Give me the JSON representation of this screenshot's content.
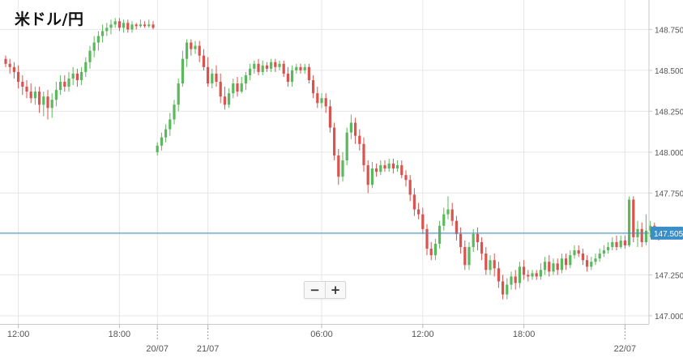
{
  "title": "米ドル/円",
  "zoom": {
    "out_label": "−",
    "in_label": "+"
  },
  "chart_data": {
    "type": "candlestick",
    "title": "米ドル/円",
    "ylim": [
      146.95,
      148.93
    ],
    "y_ticks": [
      "148.750",
      "148.500",
      "148.250",
      "148.000",
      "147.750",
      "147.500",
      "147.250",
      "147.000"
    ],
    "y_tick_values": [
      148.75,
      148.5,
      148.25,
      148.0,
      147.75,
      147.5,
      147.25,
      147.0
    ],
    "current_price": 147.505,
    "current_price_label": "147.505",
    "x_ticks": [
      {
        "label": "12:00",
        "index": 3
      },
      {
        "label": "18:00",
        "index": 27
      },
      {
        "label": "20/07",
        "index": 36,
        "separator": true
      },
      {
        "label": "21/07",
        "index": 48,
        "separator": true
      },
      {
        "label": "06:00",
        "index": 75
      },
      {
        "label": "12:00",
        "index": 99
      },
      {
        "label": "18:00",
        "index": 123
      },
      {
        "label": "22/07",
        "index": 147,
        "separator": true
      }
    ],
    "colors": {
      "up": "#5cb85c",
      "down": "#d9534f",
      "doji": "#222222",
      "price_line": "#3a8fc8",
      "grid": "#e6e6e6",
      "axis_text": "#555555"
    },
    "candles": [
      [
        148.57,
        148.54,
        148.59,
        148.52
      ],
      [
        148.54,
        148.52,
        148.57,
        148.48
      ],
      [
        148.52,
        148.49,
        148.55,
        148.45
      ],
      [
        148.49,
        148.43,
        148.53,
        148.39
      ],
      [
        148.43,
        148.4,
        148.47,
        148.35
      ],
      [
        148.4,
        148.37,
        148.44,
        148.33
      ],
      [
        148.37,
        148.33,
        148.42,
        148.3
      ],
      [
        148.33,
        148.37,
        148.4,
        148.29
      ],
      [
        148.37,
        148.29,
        148.4,
        148.24
      ],
      [
        148.29,
        148.34,
        148.37,
        148.22
      ],
      [
        148.34,
        148.27,
        148.38,
        148.2
      ],
      [
        148.27,
        148.32,
        148.36,
        148.21
      ],
      [
        148.32,
        148.38,
        148.43,
        148.28
      ],
      [
        148.38,
        148.43,
        148.47,
        148.35
      ],
      [
        148.43,
        148.4,
        148.47,
        148.37
      ],
      [
        148.4,
        148.45,
        148.49,
        148.37
      ],
      [
        148.45,
        148.48,
        148.52,
        148.41
      ],
      [
        148.48,
        148.44,
        148.51,
        148.4
      ],
      [
        148.44,
        148.49,
        148.52,
        148.41
      ],
      [
        148.49,
        148.55,
        148.58,
        148.46
      ],
      [
        148.55,
        148.62,
        148.65,
        148.51
      ],
      [
        148.62,
        148.67,
        148.71,
        148.58
      ],
      [
        148.67,
        148.71,
        148.74,
        148.62
      ],
      [
        148.71,
        148.74,
        148.78,
        148.67
      ],
      [
        148.74,
        148.76,
        148.79,
        148.71
      ],
      [
        148.76,
        148.78,
        148.81,
        148.72
      ],
      [
        148.78,
        148.8,
        148.82,
        148.76
      ],
      [
        148.8,
        148.76,
        148.82,
        148.74
      ],
      [
        148.76,
        148.79,
        148.81,
        148.73
      ],
      [
        148.79,
        148.75,
        148.81,
        148.73
      ],
      [
        148.75,
        148.78,
        148.8,
        148.73
      ],
      [
        148.78,
        148.77,
        148.79,
        148.75
      ],
      [
        148.77,
        148.78,
        148.81,
        148.76
      ],
      [
        148.78,
        148.77,
        148.8,
        148.76
      ],
      [
        148.77,
        148.78,
        148.81,
        148.76
      ],
      [
        148.78,
        148.76,
        148.8,
        148.75
      ],
      [
        148.0,
        148.04,
        148.06,
        147.98
      ],
      [
        148.04,
        148.09,
        148.12,
        148.01
      ],
      [
        148.09,
        148.14,
        148.17,
        148.06
      ],
      [
        148.14,
        148.2,
        148.24,
        148.1
      ],
      [
        148.2,
        148.29,
        148.32,
        148.17
      ],
      [
        148.29,
        148.42,
        148.45,
        148.25
      ],
      [
        148.42,
        148.57,
        148.62,
        148.4
      ],
      [
        148.57,
        148.67,
        148.69,
        148.52
      ],
      [
        148.67,
        148.63,
        148.69,
        148.59
      ],
      [
        148.63,
        148.65,
        148.68,
        148.6
      ],
      [
        148.65,
        148.59,
        148.68,
        148.55
      ],
      [
        148.59,
        148.52,
        148.63,
        148.5
      ],
      [
        148.52,
        148.42,
        148.58,
        148.4
      ],
      [
        148.42,
        148.48,
        148.51,
        148.39
      ],
      [
        148.48,
        148.43,
        148.53,
        148.4
      ],
      [
        148.43,
        148.34,
        148.48,
        148.3
      ],
      [
        148.34,
        148.29,
        148.4,
        148.26
      ],
      [
        148.29,
        148.36,
        148.39,
        148.27
      ],
      [
        148.36,
        148.42,
        148.45,
        148.33
      ],
      [
        148.42,
        148.37,
        148.46,
        148.34
      ],
      [
        148.37,
        148.42,
        148.46,
        148.36
      ],
      [
        148.42,
        148.47,
        148.49,
        148.38
      ],
      [
        148.47,
        148.51,
        148.54,
        148.44
      ],
      [
        148.51,
        148.54,
        148.56,
        148.48
      ],
      [
        148.54,
        148.49,
        148.57,
        148.47
      ],
      [
        148.49,
        148.53,
        148.56,
        148.47
      ],
      [
        148.53,
        148.51,
        148.55,
        148.49
      ],
      [
        148.51,
        148.55,
        148.57,
        148.49
      ],
      [
        148.55,
        148.52,
        148.57,
        148.49
      ],
      [
        148.52,
        148.54,
        148.56,
        148.5
      ],
      [
        148.54,
        148.48,
        148.56,
        148.46
      ],
      [
        148.48,
        148.43,
        148.52,
        148.4
      ],
      [
        148.43,
        148.5,
        148.53,
        148.4
      ],
      [
        148.5,
        148.52,
        148.54,
        148.48
      ],
      [
        148.52,
        148.5,
        148.54,
        148.48
      ],
      [
        148.5,
        148.52,
        148.54,
        148.48
      ],
      [
        148.52,
        148.44,
        148.54,
        148.42
      ],
      [
        148.44,
        148.36,
        148.47,
        148.33
      ],
      [
        148.36,
        148.3,
        148.4,
        148.27
      ],
      [
        148.3,
        148.33,
        148.36,
        148.27
      ],
      [
        148.33,
        148.28,
        148.36,
        148.24
      ],
      [
        148.28,
        148.15,
        148.32,
        148.12
      ],
      [
        148.15,
        147.98,
        148.18,
        147.95
      ],
      [
        147.98,
        147.85,
        148.02,
        147.8
      ],
      [
        147.85,
        147.95,
        148.0,
        147.82
      ],
      [
        147.95,
        148.12,
        148.15,
        147.92
      ],
      [
        148.12,
        148.18,
        148.23,
        148.08
      ],
      [
        148.18,
        148.1,
        148.21,
        148.05
      ],
      [
        148.1,
        148.05,
        148.14,
        148.01
      ],
      [
        148.05,
        147.92,
        148.09,
        147.88
      ],
      [
        147.92,
        147.8,
        147.95,
        147.75
      ],
      [
        147.8,
        147.9,
        147.94,
        147.78
      ],
      [
        147.9,
        147.88,
        147.93,
        147.85
      ],
      [
        147.88,
        147.92,
        147.95,
        147.86
      ],
      [
        147.92,
        147.9,
        147.95,
        147.88
      ],
      [
        147.9,
        147.93,
        147.96,
        147.88
      ],
      [
        147.93,
        147.9,
        147.96,
        147.87
      ],
      [
        147.9,
        147.92,
        147.95,
        147.88
      ],
      [
        147.92,
        147.86,
        147.95,
        147.84
      ],
      [
        147.86,
        147.83,
        147.89,
        147.79
      ],
      [
        147.83,
        147.74,
        147.86,
        147.7
      ],
      [
        147.74,
        147.65,
        147.78,
        147.61
      ],
      [
        147.65,
        147.62,
        147.69,
        147.59
      ],
      [
        147.62,
        147.53,
        147.66,
        147.5
      ],
      [
        147.53,
        147.41,
        147.56,
        147.37
      ],
      [
        147.41,
        147.37,
        147.45,
        147.34
      ],
      [
        147.37,
        147.44,
        147.47,
        147.34
      ],
      [
        147.44,
        147.55,
        147.58,
        147.41
      ],
      [
        147.55,
        147.62,
        147.66,
        147.52
      ],
      [
        147.62,
        147.65,
        147.73,
        147.59
      ],
      [
        147.65,
        147.58,
        147.69,
        147.55
      ],
      [
        147.58,
        147.5,
        147.61,
        147.46
      ],
      [
        147.5,
        147.42,
        147.54,
        147.38
      ],
      [
        147.42,
        147.31,
        147.46,
        147.28
      ],
      [
        147.31,
        147.42,
        147.45,
        147.28
      ],
      [
        147.42,
        147.5,
        147.53,
        147.39
      ],
      [
        147.5,
        147.45,
        147.54,
        147.4
      ],
      [
        147.45,
        147.38,
        147.48,
        147.34
      ],
      [
        147.38,
        147.28,
        147.42,
        147.25
      ],
      [
        147.28,
        147.34,
        147.37,
        147.25
      ],
      [
        147.34,
        147.29,
        147.38,
        147.24
      ],
      [
        147.29,
        147.21,
        147.33,
        147.17
      ],
      [
        147.21,
        147.13,
        147.25,
        147.1
      ],
      [
        147.13,
        147.19,
        147.23,
        147.1
      ],
      [
        147.19,
        147.24,
        147.27,
        147.16
      ],
      [
        147.24,
        147.2,
        147.28,
        147.16
      ],
      [
        147.2,
        147.3,
        147.33,
        147.17
      ],
      [
        147.3,
        147.25,
        147.34,
        147.22
      ],
      [
        147.25,
        147.24,
        147.28,
        147.21
      ],
      [
        147.24,
        147.26,
        147.28,
        147.22
      ],
      [
        147.26,
        147.24,
        147.28,
        147.22
      ],
      [
        147.24,
        147.28,
        147.32,
        147.22
      ],
      [
        147.28,
        147.33,
        147.36,
        147.25
      ],
      [
        147.33,
        147.27,
        147.37,
        147.24
      ],
      [
        147.27,
        147.32,
        147.35,
        147.25
      ],
      [
        147.32,
        147.28,
        147.35,
        147.25
      ],
      [
        147.28,
        147.35,
        147.38,
        147.26
      ],
      [
        147.35,
        147.31,
        147.38,
        147.28
      ],
      [
        147.31,
        147.37,
        147.4,
        147.29
      ],
      [
        147.37,
        147.4,
        147.43,
        147.35
      ],
      [
        147.4,
        147.38,
        147.43,
        147.36
      ],
      [
        147.38,
        147.34,
        147.41,
        147.31
      ],
      [
        147.34,
        147.3,
        147.37,
        147.27
      ],
      [
        147.3,
        147.33,
        147.36,
        147.28
      ],
      [
        147.33,
        147.35,
        147.38,
        147.31
      ],
      [
        147.35,
        147.38,
        147.41,
        147.33
      ],
      [
        147.38,
        147.4,
        147.43,
        147.36
      ],
      [
        147.4,
        147.42,
        147.45,
        147.38
      ],
      [
        147.42,
        147.45,
        147.48,
        147.4
      ],
      [
        147.45,
        147.42,
        147.49,
        147.4
      ],
      [
        147.42,
        147.46,
        147.49,
        147.41
      ],
      [
        147.46,
        147.43,
        147.49,
        147.41
      ],
      [
        147.43,
        147.71,
        147.73,
        147.42
      ],
      [
        147.71,
        147.48,
        147.73,
        147.45
      ],
      [
        147.48,
        147.53,
        147.58,
        147.42
      ],
      [
        147.53,
        147.45,
        147.57,
        147.42
      ],
      [
        147.45,
        147.52,
        147.62,
        147.43
      ],
      [
        147.52,
        147.55,
        147.58,
        147.48
      ],
      [
        147.55,
        147.52,
        147.57,
        147.47
      ],
      [
        147.52,
        147.5,
        147.54,
        147.46
      ]
    ]
  }
}
